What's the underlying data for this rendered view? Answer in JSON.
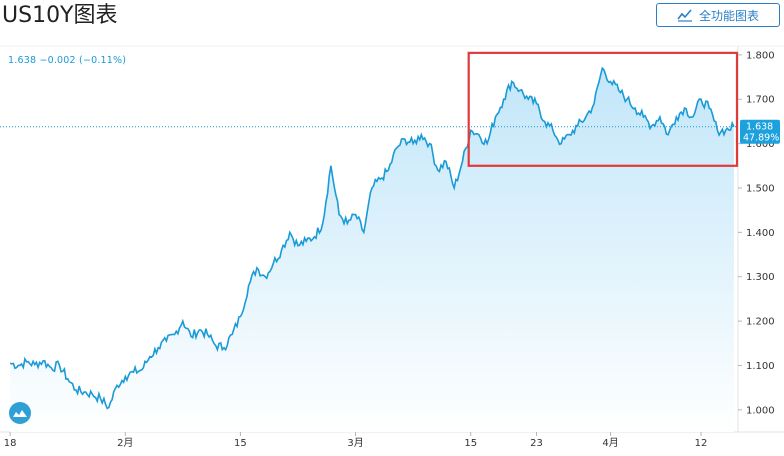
{
  "header": {
    "title": "US10Y图表",
    "full_chart_label": "全功能图表"
  },
  "readout": {
    "value": "1.638",
    "change": "−0.002",
    "change_pct": "(−0.11%)"
  },
  "price_tag": {
    "value": "1.638",
    "pct": "47.89%"
  },
  "colors": {
    "line": "#1a9ad6",
    "area_top": "#bfe5f9",
    "tag_bg": "#1da1dc",
    "highlight": "#e03a3a",
    "axis": "#e0e3eb"
  },
  "chart_data": {
    "type": "area",
    "title": "",
    "xlabel": "",
    "ylabel": "",
    "ylim": [
      0.95,
      1.82
    ],
    "y_ticks": [
      "1.800",
      "1.700",
      "1.600",
      "1.500",
      "1.400",
      "1.300",
      "1.200",
      "1.100",
      "1.000"
    ],
    "y_tick_values": [
      1.8,
      1.7,
      1.6,
      1.5,
      1.4,
      1.3,
      1.2,
      1.1,
      1.0
    ],
    "x_ticks": [
      {
        "label": "18",
        "t": 0
      },
      {
        "label": "2月",
        "t": 14
      },
      {
        "label": "15",
        "t": 28
      },
      {
        "label": "3月",
        "t": 42
      },
      {
        "label": "15",
        "t": 56
      },
      {
        "label": "23",
        "t": 64
      },
      {
        "label": "4月",
        "t": 73
      },
      {
        "label": "12",
        "t": 84
      }
    ],
    "t_range": [
      -0.5,
      88.5
    ],
    "series": [
      {
        "points": [
          [
            0,
            1.105
          ],
          [
            1,
            1.1
          ],
          [
            2,
            1.108
          ],
          [
            3,
            1.102
          ],
          [
            4,
            1.11
          ],
          [
            5,
            1.095
          ],
          [
            6,
            1.1
          ],
          [
            7,
            1.07
          ],
          [
            8,
            1.045
          ],
          [
            9,
            1.04
          ],
          [
            10,
            1.035
          ],
          [
            11,
            1.025
          ],
          [
            12,
            1.005
          ],
          [
            13,
            1.055
          ],
          [
            14,
            1.075
          ],
          [
            15,
            1.085
          ],
          [
            16,
            1.09
          ],
          [
            17,
            1.12
          ],
          [
            18,
            1.14
          ],
          [
            19,
            1.155
          ],
          [
            20,
            1.17
          ],
          [
            21,
            1.2
          ],
          [
            22,
            1.165
          ],
          [
            23,
            1.18
          ],
          [
            24,
            1.17
          ],
          [
            25,
            1.145
          ],
          [
            26,
            1.14
          ],
          [
            27,
            1.17
          ],
          [
            28,
            1.21
          ],
          [
            29,
            1.28
          ],
          [
            30,
            1.32
          ],
          [
            31,
            1.3
          ],
          [
            32,
            1.33
          ],
          [
            33,
            1.36
          ],
          [
            34,
            1.4
          ],
          [
            35,
            1.37
          ],
          [
            36,
            1.38
          ],
          [
            37,
            1.39
          ],
          [
            38,
            1.42
          ],
          [
            39,
            1.55
          ],
          [
            40,
            1.44
          ],
          [
            41,
            1.42
          ],
          [
            42,
            1.44
          ],
          [
            43,
            1.4
          ],
          [
            44,
            1.5
          ],
          [
            45,
            1.52
          ],
          [
            46,
            1.54
          ],
          [
            47,
            1.59
          ],
          [
            48,
            1.61
          ],
          [
            49,
            1.6
          ],
          [
            50,
            1.62
          ],
          [
            51,
            1.6
          ],
          [
            52,
            1.54
          ],
          [
            53,
            1.56
          ],
          [
            54,
            1.5
          ],
          [
            55,
            1.56
          ],
          [
            56,
            1.63
          ],
          [
            57,
            1.62
          ],
          [
            58,
            1.6
          ],
          [
            59,
            1.66
          ],
          [
            60,
            1.7
          ],
          [
            61,
            1.74
          ],
          [
            62,
            1.72
          ],
          [
            63,
            1.7
          ],
          [
            64,
            1.69
          ],
          [
            65,
            1.65
          ],
          [
            66,
            1.63
          ],
          [
            67,
            1.6
          ],
          [
            68,
            1.62
          ],
          [
            69,
            1.64
          ],
          [
            70,
            1.66
          ],
          [
            71,
            1.69
          ],
          [
            72,
            1.77
          ],
          [
            73,
            1.74
          ],
          [
            74,
            1.72
          ],
          [
            75,
            1.7
          ],
          [
            76,
            1.68
          ],
          [
            77,
            1.66
          ],
          [
            78,
            1.64
          ],
          [
            79,
            1.66
          ],
          [
            80,
            1.62
          ],
          [
            81,
            1.66
          ],
          [
            82,
            1.68
          ],
          [
            83,
            1.66
          ],
          [
            84,
            1.7
          ],
          [
            85,
            1.68
          ],
          [
            86,
            1.63
          ],
          [
            87,
            1.63
          ],
          [
            88,
            1.638
          ]
        ]
      }
    ],
    "last_value": 1.638,
    "grid": false,
    "highlight_range": {
      "t_start": 56,
      "t_end": 88.5,
      "y_low": 1.55,
      "y_high": 1.8
    }
  }
}
